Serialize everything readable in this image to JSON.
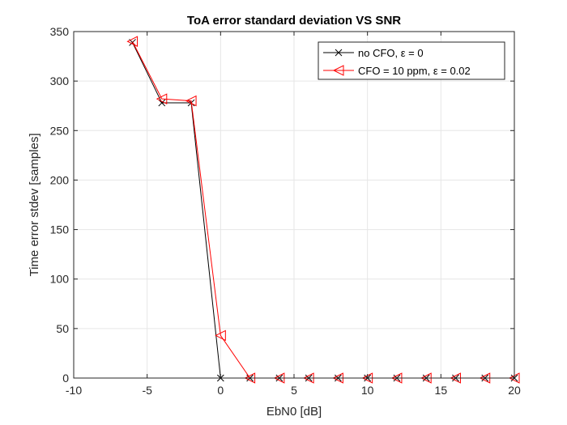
{
  "chart_data": {
    "type": "line",
    "title": "ToA error standard deviation VS SNR",
    "xlabel": "EbN0 [dB]",
    "ylabel": "Time error stdev [samples]",
    "xlim": [
      -10,
      20
    ],
    "ylim": [
      0,
      350
    ],
    "xticks": [
      -10,
      -5,
      0,
      5,
      10,
      15,
      20
    ],
    "yticks": [
      0,
      50,
      100,
      150,
      200,
      250,
      300,
      350
    ],
    "grid": true,
    "legend_position": "top-right",
    "series": [
      {
        "name": "no CFO, ε = 0",
        "color": "#000000",
        "marker": "x",
        "x": [
          -6,
          -4,
          -2,
          0,
          2,
          4,
          6,
          8,
          10,
          12,
          14,
          16,
          18,
          20
        ],
        "y": [
          339,
          278,
          278,
          0,
          0,
          0,
          0,
          0,
          0,
          0,
          0,
          0,
          0,
          0
        ]
      },
      {
        "name": "CFO = 10 ppm, ε = 0.02",
        "color": "#ff0000",
        "marker": "triangle-left",
        "x": [
          -6,
          -4,
          -2,
          0,
          2,
          4,
          6,
          8,
          10,
          12,
          14,
          16,
          18,
          20
        ],
        "y": [
          340,
          282,
          280,
          43,
          0,
          0,
          0,
          0,
          0,
          0,
          0,
          0,
          0,
          0
        ]
      }
    ]
  }
}
